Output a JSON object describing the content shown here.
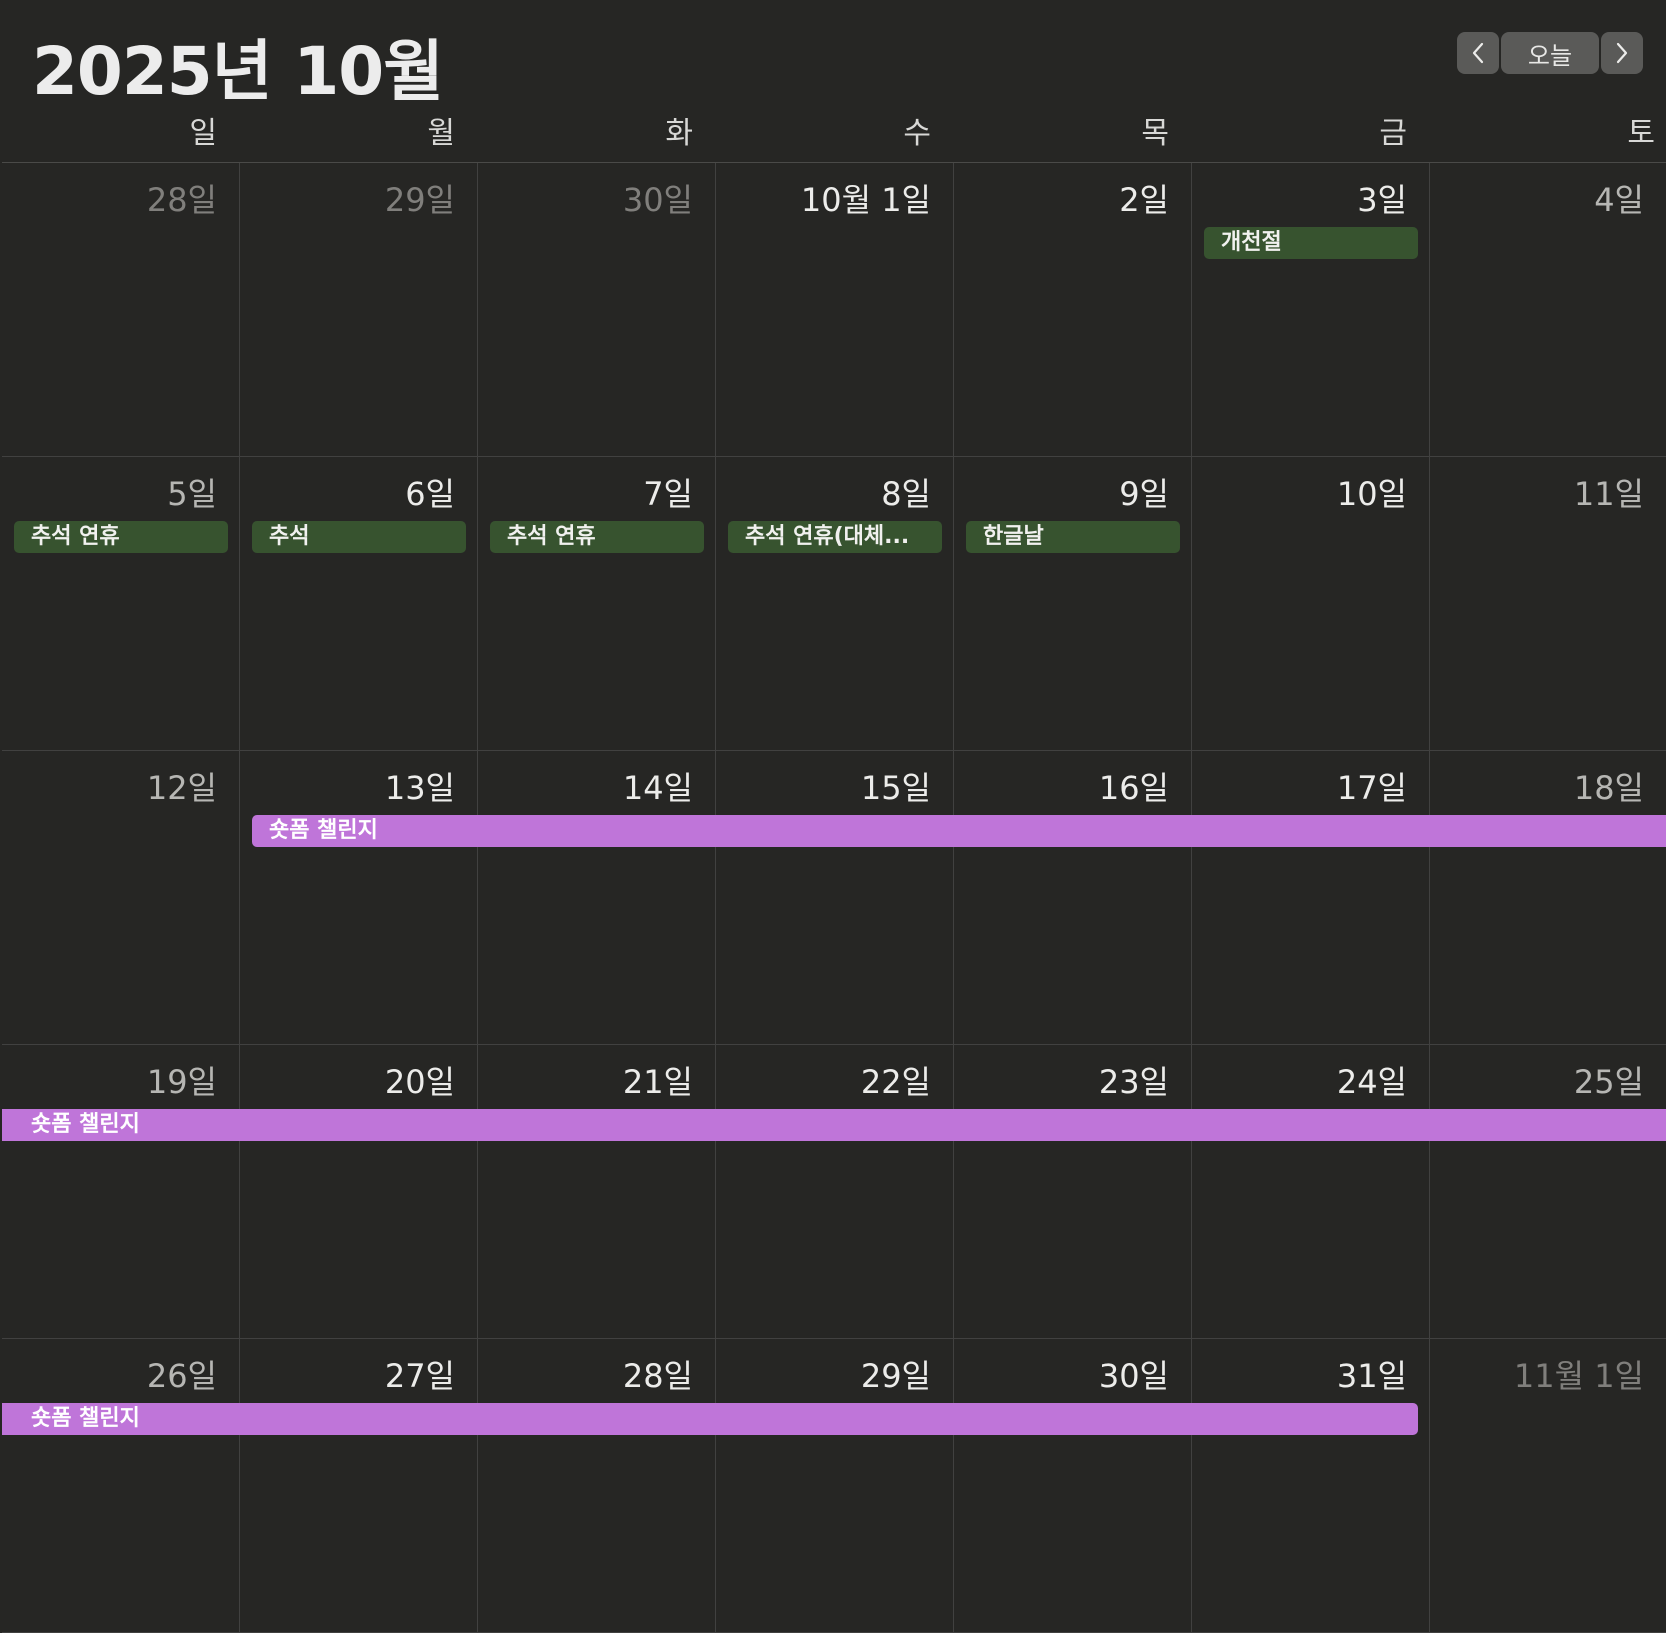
{
  "header": {
    "title": "2025년 10월",
    "today_label": "오늘",
    "prev_icon": "chevron-left-icon",
    "next_icon": "chevron-right-icon"
  },
  "weekdays": [
    "일",
    "월",
    "화",
    "수",
    "목",
    "금",
    "토"
  ],
  "weeks": [
    [
      {
        "label": "28일",
        "state": "dim"
      },
      {
        "label": "29일",
        "state": "dim"
      },
      {
        "label": "30일",
        "state": "dim"
      },
      {
        "label": "10월 1일",
        "state": "normal"
      },
      {
        "label": "2일",
        "state": "normal"
      },
      {
        "label": "3일",
        "state": "normal"
      },
      {
        "label": "4일",
        "state": "weekend"
      }
    ],
    [
      {
        "label": "5일",
        "state": "weekend"
      },
      {
        "label": "6일",
        "state": "normal"
      },
      {
        "label": "7일",
        "state": "normal"
      },
      {
        "label": "8일",
        "state": "normal"
      },
      {
        "label": "9일",
        "state": "normal"
      },
      {
        "label": "10일",
        "state": "normal"
      },
      {
        "label": "11일",
        "state": "weekend"
      }
    ],
    [
      {
        "label": "12일",
        "state": "weekend"
      },
      {
        "label": "13일",
        "state": "normal"
      },
      {
        "label": "14일",
        "state": "normal"
      },
      {
        "label": "15일",
        "state": "normal"
      },
      {
        "label": "16일",
        "state": "normal"
      },
      {
        "label": "17일",
        "state": "normal"
      },
      {
        "label": "18일",
        "state": "weekend"
      }
    ],
    [
      {
        "label": "19일",
        "state": "weekend"
      },
      {
        "label": "20일",
        "state": "normal"
      },
      {
        "label": "21일",
        "state": "normal"
      },
      {
        "label": "22일",
        "state": "normal"
      },
      {
        "label": "23일",
        "state": "normal"
      },
      {
        "label": "24일",
        "state": "normal"
      },
      {
        "label": "25일",
        "state": "weekend"
      }
    ],
    [
      {
        "label": "26일",
        "state": "weekend"
      },
      {
        "label": "27일",
        "state": "normal"
      },
      {
        "label": "28일",
        "state": "normal"
      },
      {
        "label": "29일",
        "state": "normal"
      },
      {
        "label": "30일",
        "state": "normal"
      },
      {
        "label": "31일",
        "state": "normal"
      },
      {
        "label": "11월 1일",
        "state": "dim"
      }
    ]
  ],
  "events": [
    {
      "title": "개천절",
      "week": 0,
      "start_day": 5,
      "end_day": 5,
      "color": "#37532f",
      "kind": "holiday"
    },
    {
      "title": "추석 연휴",
      "week": 1,
      "start_day": 0,
      "end_day": 0,
      "color": "#37532f",
      "kind": "holiday"
    },
    {
      "title": "추석",
      "week": 1,
      "start_day": 1,
      "end_day": 1,
      "color": "#37532f",
      "kind": "holiday"
    },
    {
      "title": "추석 연휴",
      "week": 1,
      "start_day": 2,
      "end_day": 2,
      "color": "#37532f",
      "kind": "holiday"
    },
    {
      "title": "추석 연휴(대체...",
      "week": 1,
      "start_day": 3,
      "end_day": 3,
      "color": "#37532f",
      "kind": "holiday"
    },
    {
      "title": "한글날",
      "week": 1,
      "start_day": 4,
      "end_day": 4,
      "color": "#37532f",
      "kind": "holiday"
    },
    {
      "title": "숏폼 챌린지",
      "week": 2,
      "start_day": 1,
      "end_day": 6,
      "continues_after": true,
      "color": "#bf75d9",
      "kind": "event"
    },
    {
      "title": "숏폼 챌린지",
      "week": 3,
      "start_day": 0,
      "end_day": 6,
      "continues_before": true,
      "continues_after": true,
      "color": "#bf75d9",
      "kind": "event"
    },
    {
      "title": "숏폼 챌린지",
      "week": 4,
      "start_day": 0,
      "end_day": 5,
      "continues_before": true,
      "color": "#bf75d9",
      "kind": "event"
    }
  ],
  "colors": {
    "background": "#262624",
    "holiday": "#37532f",
    "challenge": "#bf75d9",
    "nav_button": "#5a5a58"
  }
}
